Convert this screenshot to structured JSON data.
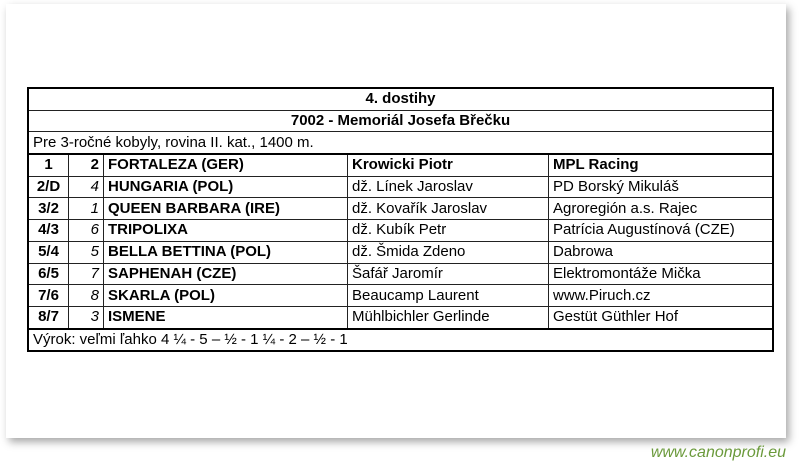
{
  "race": {
    "title": "4. dostihy",
    "name": "7002 - Memoriál Josefa Břečku",
    "conditions": "Pre 3-ročné kobyly, rovina II. kat., 1400 m.",
    "results": [
      {
        "place": "1",
        "number": "2",
        "horse": "FORTALEZA (GER)",
        "jockey": "Krowicki Piotr",
        "owner": "MPL Racing"
      },
      {
        "place": "2/D",
        "number": "4",
        "horse": "HUNGARIA (POL)",
        "jockey": "dž. Línek Jaroslav",
        "owner": "PD Borský Mikuláš"
      },
      {
        "place": "3/2",
        "number": "1",
        "horse": "QUEEN BARBARA (IRE)",
        "jockey": "dž. Kovařík Jaroslav",
        "owner": "Agroregión a.s. Rajec"
      },
      {
        "place": "4/3",
        "number": "6",
        "horse": "TRIPOLIXA",
        "jockey": "dž. Kubík Petr",
        "owner": "Patrícia Augustínová (CZE)"
      },
      {
        "place": "5/4",
        "number": "5",
        "horse": "BELLA BETTINA (POL)",
        "jockey": "dž. Šmida Zdeno",
        "owner": "Dabrowa"
      },
      {
        "place": "6/5",
        "number": "7",
        "horse": "SAPHENAH (CZE)",
        "jockey": "Šafář Jaromír",
        "owner": "Elektromontáže Mička"
      },
      {
        "place": "7/6",
        "number": "8",
        "horse": "SKARLA (POL)",
        "jockey": "Beaucamp Laurent",
        "owner": "www.Piruch.cz"
      },
      {
        "place": "8/7",
        "number": "3",
        "horse": "ISMENE",
        "jockey": "Mühlbichler Gerlinde",
        "owner": "Gestüt Güthler Hof"
      }
    ],
    "verdict": "Výrok: veľmi ľahko 4 ¼ - 5 – ½ - 1 ¼ - 2 – ½ - 1"
  },
  "watermark": "www.canonprofi.eu",
  "colors": {
    "watermark": "#6b9a3c"
  }
}
